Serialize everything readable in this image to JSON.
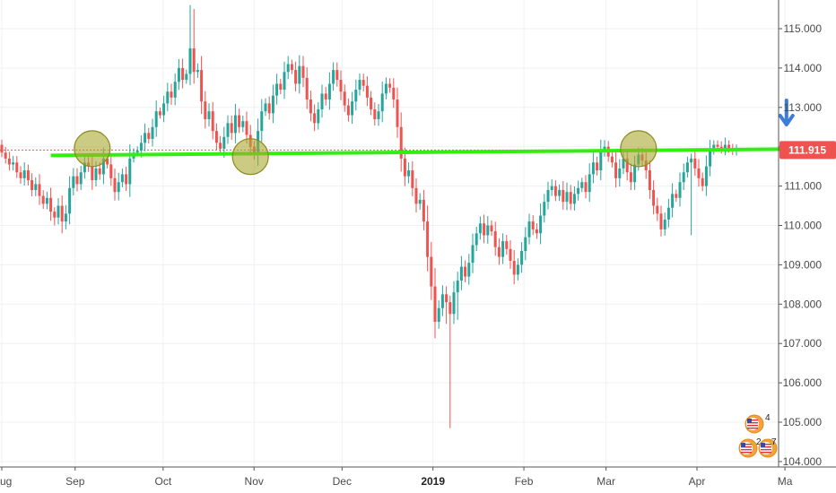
{
  "colors": {
    "up": "#26a69a",
    "down": "#ef5350",
    "support_line": "#33ee11",
    "highlight_circle": "#a9a832",
    "arrow": "#3b7dd8",
    "price_badge": "#ef5350",
    "grid": "#eef0f3",
    "axis_border": "#555555"
  },
  "icons": {
    "arrow": "arrow-down-icon",
    "flags": "us-flag-icon"
  },
  "event_badges": [
    "4",
    "2",
    "7"
  ],
  "chart_data": {
    "type": "candlestick",
    "title": "",
    "xlabel": "",
    "ylabel": "",
    "grid": true,
    "ylim": [
      103.9,
      115.7
    ],
    "y_ticks": [
      "104.000",
      "105.000",
      "106.000",
      "107.000",
      "108.000",
      "109.000",
      "110.000",
      "111.000",
      "112.000",
      "113.000",
      "114.000",
      "115.000"
    ],
    "x_ticks": [
      {
        "label": "ug",
        "day": 0
      },
      {
        "label": "Sep",
        "day": 25
      },
      {
        "label": "Oct",
        "day": 55
      },
      {
        "label": "Nov",
        "day": 86
      },
      {
        "label": "Dec",
        "day": 116
      },
      {
        "label": "2019",
        "day": 147,
        "bold": true
      },
      {
        "label": "Feb",
        "day": 178
      },
      {
        "label": "Mar",
        "day": 206
      },
      {
        "label": "Apr",
        "day": 237
      },
      {
        "label": "Ma",
        "day": 267
      }
    ],
    "current_price": "111.915",
    "current_price_value": 111.915,
    "series": [
      {
        "name": "",
        "close": [
          111.85,
          111.7,
          111.55,
          111.6,
          111.35,
          111.2,
          111.4,
          111.15,
          110.9,
          111.05,
          110.75,
          110.55,
          110.7,
          110.35,
          110.2,
          110.5,
          110.1,
          110.3,
          110.95,
          111.25,
          111.05,
          111.35,
          111.6,
          111.5,
          111.15,
          111.45,
          111.3,
          111.7,
          111.55,
          111.2,
          110.85,
          111.1,
          111.3,
          111.05,
          111.7,
          111.85,
          111.9,
          112.1,
          112.35,
          112.2,
          112.5,
          112.9,
          112.8,
          113.1,
          113.4,
          113.25,
          113.65,
          114.0,
          113.7,
          113.85,
          114.5,
          113.9,
          113.95,
          113.15,
          112.7,
          112.9,
          112.4,
          112.1,
          111.95,
          112.25,
          112.6,
          112.35,
          112.8,
          112.5,
          112.65,
          112.3,
          112.0,
          111.8,
          112.4,
          112.9,
          113.1,
          112.85,
          113.3,
          113.6,
          113.45,
          113.9,
          114.1,
          113.95,
          113.6,
          114.05,
          113.75,
          113.2,
          112.85,
          112.6,
          112.95,
          113.35,
          113.2,
          113.6,
          113.95,
          113.7,
          113.4,
          113.05,
          112.8,
          113.15,
          113.45,
          113.7,
          113.55,
          113.25,
          112.95,
          112.7,
          112.9,
          113.35,
          113.6,
          113.5,
          113.2,
          112.5,
          111.7,
          111.25,
          111.4,
          110.95,
          110.55,
          110.65,
          110.1,
          109.2,
          108.45,
          107.55,
          107.9,
          108.25,
          108.05,
          107.75,
          108.3,
          108.6,
          108.95,
          108.7,
          109.05,
          109.5,
          109.8,
          110.05,
          109.75,
          110.0,
          109.85,
          109.45,
          109.2,
          109.6,
          109.4,
          109.1,
          108.75,
          109.0,
          109.35,
          109.7,
          110.1,
          109.9,
          109.8,
          110.25,
          110.6,
          110.9,
          111.0,
          110.75,
          110.9,
          110.6,
          110.85,
          110.55,
          110.8,
          110.95,
          111.1,
          110.85,
          111.3,
          111.6,
          111.4,
          111.9,
          112.0,
          111.75,
          111.6,
          111.2,
          111.45,
          111.7,
          111.35,
          111.1,
          111.55,
          111.8,
          111.65,
          111.4,
          110.9,
          110.5,
          110.3,
          109.9,
          110.15,
          110.45,
          110.8,
          110.7,
          111.1,
          111.35,
          111.6,
          111.7,
          111.45,
          111.2,
          111.0,
          111.5,
          111.9,
          112.05,
          112.0,
          111.95,
          112.05,
          111.95,
          111.9,
          111.915
        ],
        "open": [
          112.05,
          111.85,
          111.7,
          111.55,
          111.6,
          111.35,
          111.2,
          111.4,
          111.15,
          110.9,
          111.05,
          110.75,
          110.55,
          110.7,
          110.35,
          110.2,
          110.5,
          110.1,
          110.3,
          110.95,
          111.25,
          111.05,
          111.35,
          111.6,
          111.5,
          111.15,
          111.45,
          111.3,
          111.7,
          111.55,
          111.2,
          110.85,
          111.1,
          111.3,
          111.05,
          111.7,
          111.85,
          111.9,
          112.1,
          112.35,
          112.2,
          112.5,
          112.9,
          112.8,
          113.1,
          113.4,
          113.25,
          113.65,
          114.0,
          113.7,
          113.85,
          114.5,
          113.9,
          113.95,
          113.15,
          112.7,
          112.9,
          112.4,
          112.1,
          111.95,
          112.25,
          112.6,
          112.35,
          112.8,
          112.5,
          112.65,
          112.3,
          112.0,
          111.8,
          112.4,
          112.9,
          113.1,
          112.85,
          113.3,
          113.6,
          113.45,
          113.9,
          114.1,
          113.95,
          113.6,
          114.05,
          113.75,
          113.2,
          112.85,
          112.6,
          112.95,
          113.35,
          113.2,
          113.6,
          113.95,
          113.7,
          113.4,
          113.05,
          112.8,
          113.15,
          113.45,
          113.7,
          113.55,
          113.25,
          112.95,
          112.7,
          112.9,
          113.35,
          113.6,
          113.5,
          113.2,
          112.5,
          111.7,
          111.25,
          111.4,
          110.95,
          110.55,
          110.65,
          110.1,
          109.2,
          108.45,
          107.55,
          107.9,
          108.25,
          108.05,
          107.75,
          108.3,
          108.6,
          108.95,
          108.7,
          109.05,
          109.5,
          109.8,
          110.05,
          109.75,
          110.0,
          109.85,
          109.45,
          109.2,
          109.6,
          109.4,
          109.1,
          108.75,
          109.0,
          109.35,
          109.7,
          110.1,
          109.9,
          109.8,
          110.25,
          110.6,
          110.9,
          111.0,
          110.75,
          110.9,
          110.6,
          110.85,
          110.55,
          110.8,
          110.95,
          111.1,
          110.85,
          111.3,
          111.6,
          111.4,
          111.9,
          112.0,
          111.75,
          111.6,
          111.2,
          111.45,
          111.7,
          111.35,
          111.1,
          111.55,
          111.8,
          111.65,
          111.4,
          110.9,
          110.5,
          110.3,
          109.9,
          110.15,
          110.45,
          110.8,
          110.7,
          111.1,
          111.35,
          111.6,
          111.7,
          111.45,
          111.2,
          111.0,
          111.5,
          111.9,
          112.05,
          112.0,
          111.95,
          112.05,
          111.95,
          111.9
        ]
      }
    ],
    "wick_extremes": [
      {
        "index": 14,
        "low": 110.0
      },
      {
        "index": 16,
        "low": 109.8
      },
      {
        "index": 50,
        "high": 115.6
      },
      {
        "index": 51,
        "high": 115.5
      },
      {
        "index": 118,
        "low": 107.5
      },
      {
        "index": 119,
        "low": 104.85
      },
      {
        "index": 121,
        "low": 107.6
      },
      {
        "index": 183,
        "low": 109.75
      }
    ],
    "annotations": {
      "support_line": {
        "from": {
          "index": 13,
          "price": 111.78
        },
        "to": {
          "index": 206,
          "price": 111.92
        }
      },
      "circles": [
        {
          "index": 24,
          "price": 111.95
        },
        {
          "index": 66,
          "price": 111.75
        },
        {
          "index": 169,
          "price": 111.95
        }
      ],
      "arrow_index": 204
    }
  }
}
